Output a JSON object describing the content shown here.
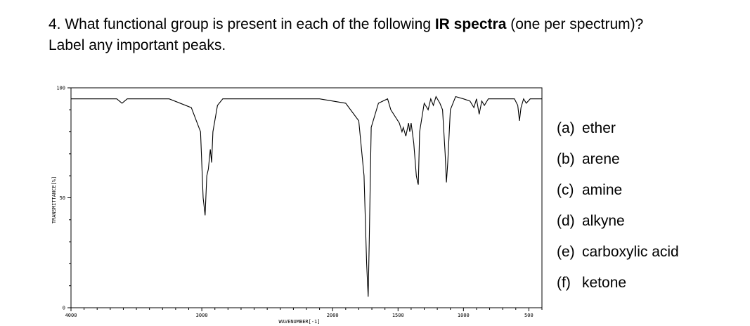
{
  "question": {
    "number": "4.",
    "text_before": "What functional group is present in each of the following ",
    "bold": "IR spectra",
    "text_after": " (one per spectrum)?",
    "line2": "Label any important peaks."
  },
  "options": [
    {
      "letter": "(a)",
      "text": "ether"
    },
    {
      "letter": "(b)",
      "text": "arene"
    },
    {
      "letter": "(c)",
      "text": "amine"
    },
    {
      "letter": "(d)",
      "text": "alkyne"
    },
    {
      "letter": "(e)",
      "text": "carboxylic acid"
    },
    {
      "letter": "(f)",
      "text": "ketone"
    }
  ],
  "chart_data": {
    "type": "line",
    "title": "",
    "xlabel": "WAVENUMBER[-1]",
    "ylabel": "TRANSMITTANCE[%]",
    "xlim": [
      4000,
      400
    ],
    "ylim": [
      0,
      100
    ],
    "grid": false,
    "xticks": [
      {
        "value": 4000,
        "label": "4000"
      },
      {
        "value": 3000,
        "label": "3000"
      },
      {
        "value": 2000,
        "label": "2000"
      },
      {
        "value": 1500,
        "label": "1500"
      },
      {
        "value": 1000,
        "label": "1000"
      },
      {
        "value": 500,
        "label": "500"
      }
    ],
    "yticks": [
      {
        "value": 100,
        "label": "100"
      },
      {
        "value": 50,
        "label": "50"
      },
      {
        "value": 0,
        "label": "0"
      }
    ],
    "series": [
      {
        "color": "#000000",
        "points": [
          [
            4000,
            95
          ],
          [
            3650,
            95
          ],
          [
            3610,
            93
          ],
          [
            3570,
            95
          ],
          [
            3250,
            95
          ],
          [
            3080,
            91
          ],
          [
            3010,
            80
          ],
          [
            2990,
            50
          ],
          [
            2975,
            42
          ],
          [
            2962,
            60
          ],
          [
            2950,
            63
          ],
          [
            2935,
            72
          ],
          [
            2925,
            66
          ],
          [
            2915,
            80
          ],
          [
            2880,
            92
          ],
          [
            2840,
            95
          ],
          [
            2100,
            95
          ],
          [
            1900,
            93
          ],
          [
            1800,
            85
          ],
          [
            1760,
            60
          ],
          [
            1740,
            20
          ],
          [
            1728,
            5
          ],
          [
            1720,
            30
          ],
          [
            1705,
            82
          ],
          [
            1650,
            93
          ],
          [
            1580,
            95
          ],
          [
            1555,
            90
          ],
          [
            1490,
            84
          ],
          [
            1470,
            80
          ],
          [
            1460,
            82
          ],
          [
            1440,
            78
          ],
          [
            1420,
            84
          ],
          [
            1410,
            80
          ],
          [
            1400,
            84
          ],
          [
            1380,
            75
          ],
          [
            1360,
            60
          ],
          [
            1350,
            57
          ],
          [
            1345,
            56
          ],
          [
            1335,
            80
          ],
          [
            1300,
            93
          ],
          [
            1270,
            90
          ],
          [
            1250,
            95
          ],
          [
            1230,
            92
          ],
          [
            1210,
            96
          ],
          [
            1180,
            93
          ],
          [
            1160,
            90
          ],
          [
            1140,
            70
          ],
          [
            1130,
            57
          ],
          [
            1120,
            66
          ],
          [
            1100,
            90
          ],
          [
            1060,
            96
          ],
          [
            1000,
            95
          ],
          [
            950,
            94
          ],
          [
            920,
            91
          ],
          [
            900,
            95
          ],
          [
            880,
            88
          ],
          [
            860,
            94
          ],
          [
            840,
            92
          ],
          [
            810,
            95
          ],
          [
            740,
            95
          ],
          [
            610,
            95
          ],
          [
            585,
            92
          ],
          [
            572,
            85
          ],
          [
            560,
            91
          ],
          [
            540,
            95
          ],
          [
            520,
            93
          ],
          [
            490,
            95
          ],
          [
            420,
            95
          ],
          [
            400,
            95
          ]
        ]
      }
    ]
  }
}
